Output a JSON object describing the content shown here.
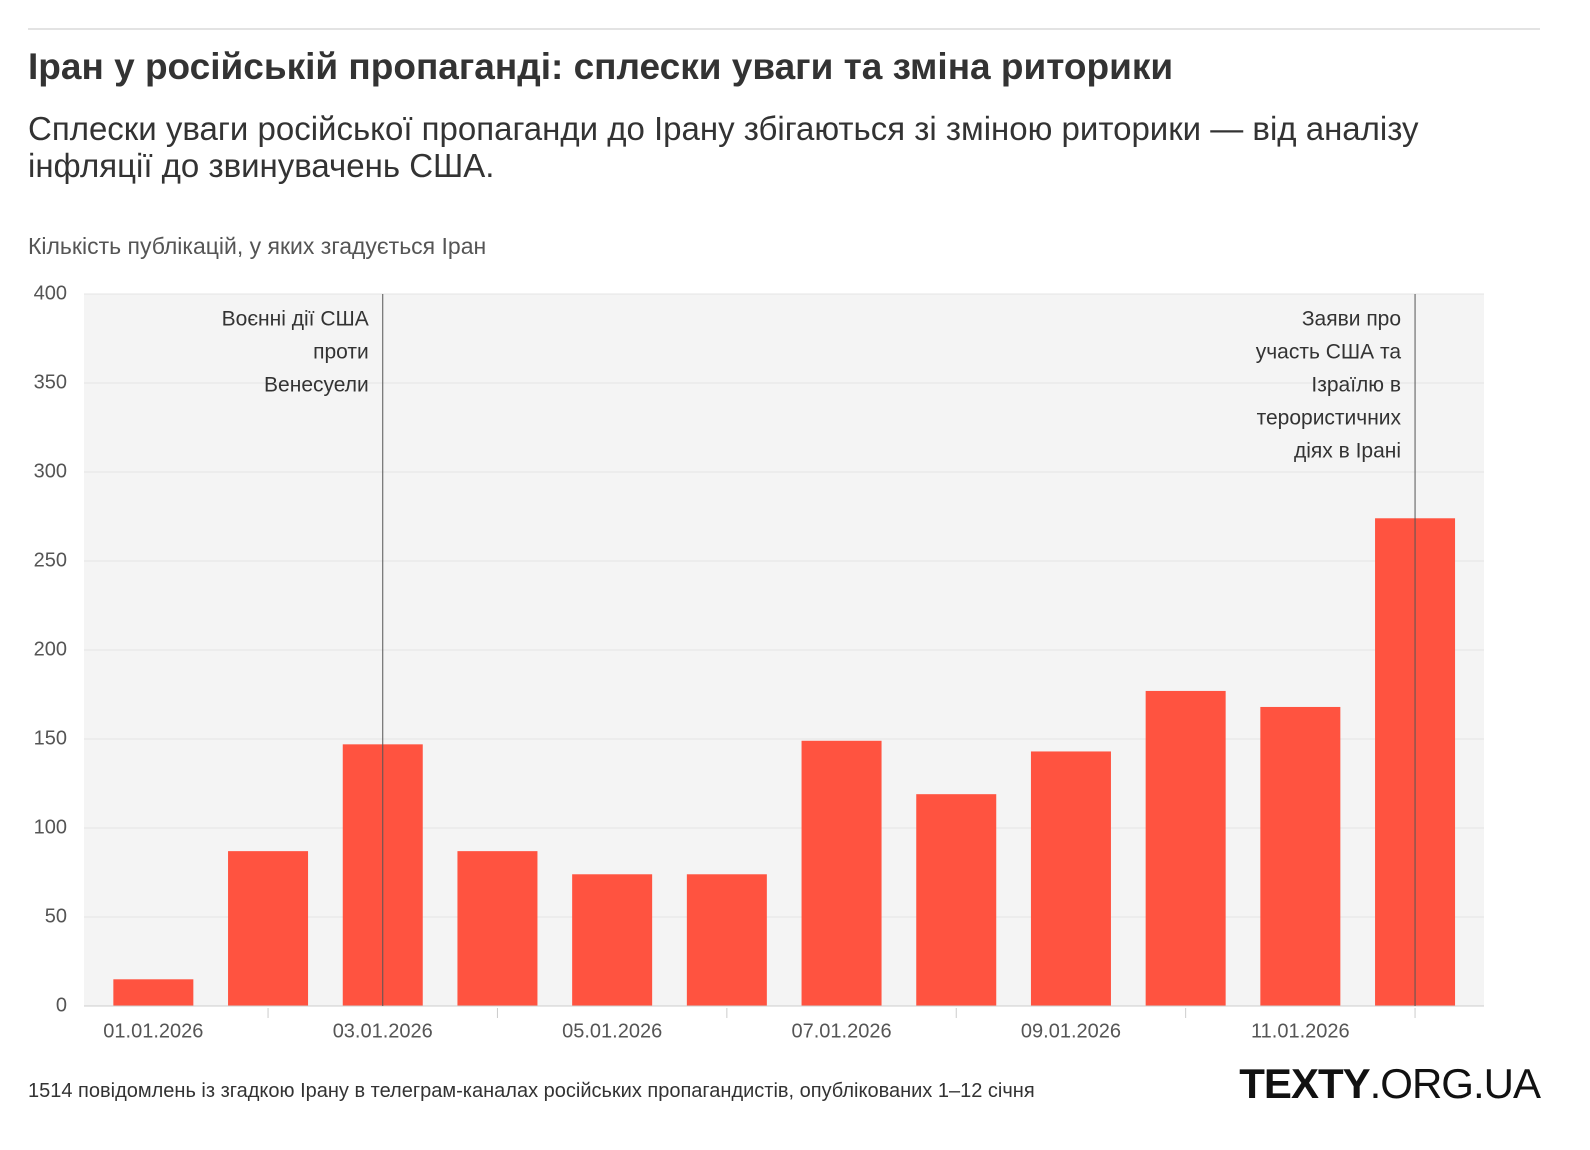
{
  "chart_data": {
    "type": "bar",
    "title": "Іран у російській пропаганді: сплески уваги та зміна риторики",
    "subtitle": "Сплески уваги російської пропаганди до Ірану збігаються зі зміною риторики — від аналізу інфляції до звинувачень США.",
    "y_label": "Кількість публікацій, у яких згадується Іран",
    "categories": [
      "01.01.2026",
      null,
      "03.01.2026",
      null,
      "05.01.2026",
      null,
      "07.01.2026",
      null,
      "09.01.2026",
      null,
      "11.01.2026",
      null
    ],
    "values": [
      15,
      87,
      147,
      87,
      74,
      74,
      149,
      119,
      143,
      177,
      168,
      274
    ],
    "color": "#ff5340",
    "ylim": [
      0,
      400
    ],
    "yticks": [
      0,
      50,
      100,
      150,
      200,
      250,
      300,
      350,
      400
    ],
    "grid": true,
    "annotations": [
      {
        "category": 2,
        "lines": [
          "Воєнні дії США",
          "проти",
          "Венесуели"
        ]
      },
      {
        "category": 11,
        "lines": [
          "Заяви про",
          "участь США та",
          "Ізраїлю в",
          "терористичних",
          "діях в Ірані"
        ]
      }
    ],
    "note": "1514 повідомлень із згадкою Ірану в телеграм-каналах російських пропагандистів, опублікованих 1–12 січня",
    "logo": {
      "bold": "TEXTY",
      "rest": ".ORG.UA"
    }
  }
}
